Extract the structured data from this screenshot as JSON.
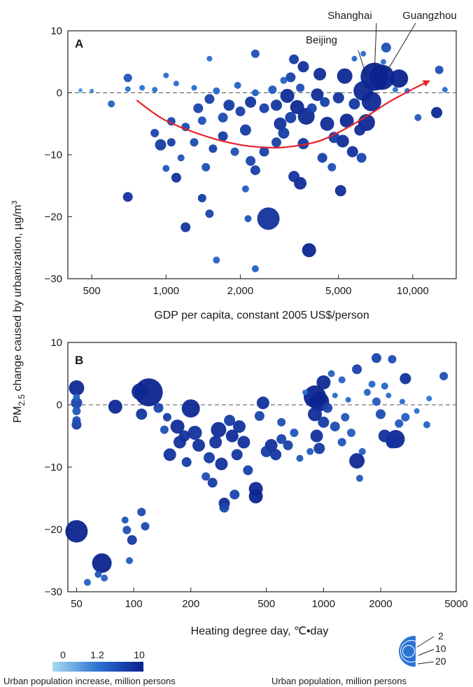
{
  "ylabel": "PM2.5 change caused by urbanization, µg/m3",
  "ylabel_parts": {
    "pre": "PM",
    "sub": "2.5",
    "mid": " change caused by urbanization, µg/m",
    "sup": "3"
  },
  "colors": {
    "light": "#a6dbef",
    "mid": "#2b73d3",
    "dark": "#0a1f8c",
    "curve": "#e8232a",
    "frame": "#222222"
  },
  "chart_data": [
    {
      "panel": "A",
      "type": "scatter",
      "xlabel": "GDP per capita, constant 2005 US$/person",
      "xscale": "log",
      "xlim": [
        400,
        15000
      ],
      "ylim": [
        -30,
        10
      ],
      "xticks": [
        500,
        1000,
        2000,
        5000,
        10000
      ],
      "xtick_labels": [
        "500",
        "1,000",
        "2,000",
        "5,000",
        "10,000"
      ],
      "yticks": [
        -30,
        -20,
        -10,
        0,
        10
      ],
      "ytick_labels": [
        "−30",
        "−20",
        "−10",
        "0",
        "10"
      ],
      "reference_line": 0,
      "annotations": [
        {
          "text": "Beijing",
          "x": 6500,
          "y": 1.5
        },
        {
          "text": "Shanghai",
          "x": 7000,
          "y": 2.5
        },
        {
          "text": "Guangzhou",
          "x": 7900,
          "y": 2.5
        }
      ],
      "trend_curve": [
        [
          760,
          -1.2
        ],
        [
          1000,
          -4.5
        ],
        [
          1500,
          -7.2
        ],
        [
          2000,
          -8.4
        ],
        [
          2500,
          -8.8
        ],
        [
          3000,
          -8.8
        ],
        [
          4000,
          -8
        ],
        [
          5000,
          -6.4
        ],
        [
          6500,
          -3.8
        ],
        [
          8000,
          -1.5
        ],
        [
          10000,
          0.6
        ],
        [
          11500,
          1.8
        ]
      ],
      "points": [
        [
          2600,
          -20.3,
          16,
          8
        ],
        [
          3800,
          -25.4,
          10,
          9.5
        ],
        [
          12500,
          -3.2,
          8,
          9
        ],
        [
          5300,
          2.7,
          11,
          9
        ],
        [
          7000,
          2.6,
          20,
          9.5
        ],
        [
          7500,
          2.5,
          18,
          9.5
        ],
        [
          8800,
          2.3,
          13,
          9.5
        ],
        [
          6300,
          0.3,
          14,
          9
        ],
        [
          6800,
          -1.4,
          14,
          9
        ],
        [
          6500,
          -4.8,
          12,
          9
        ],
        [
          6100,
          -6.0,
          8,
          8.5
        ],
        [
          5400,
          -4.5,
          10,
          9
        ],
        [
          4500,
          -5.0,
          10,
          8.5
        ],
        [
          3700,
          -3.8,
          12,
          9
        ],
        [
          3400,
          -2.3,
          10,
          9
        ],
        [
          4100,
          -0.3,
          9,
          8.5
        ],
        [
          3100,
          -0.5,
          10,
          8.5
        ],
        [
          2800,
          -2.0,
          8,
          7.5
        ],
        [
          2500,
          -2.5,
          7,
          6.5
        ],
        [
          2200,
          -1.5,
          8,
          7.5
        ],
        [
          1800,
          -2.0,
          8,
          7
        ],
        [
          1500,
          -1.0,
          7,
          6.5
        ],
        [
          1350,
          -2.5,
          7,
          6
        ],
        [
          1200,
          -5.5,
          6,
          5.5
        ],
        [
          1050,
          -4.6,
          6,
          6
        ],
        [
          950,
          -8.4,
          8,
          7
        ],
        [
          900,
          -6.5,
          6,
          6
        ],
        [
          700,
          -16.8,
          7,
          8
        ],
        [
          1100,
          -13.7,
          7,
          8
        ],
        [
          1200,
          -21.7,
          7,
          7.5
        ],
        [
          1400,
          -17.0,
          6,
          7
        ],
        [
          1500,
          -19.5,
          6,
          6
        ],
        [
          1600,
          -27,
          5,
          3
        ],
        [
          2150,
          -20.3,
          5,
          4.5
        ],
        [
          2300,
          -28.4,
          5,
          3
        ],
        [
          2100,
          -15.5,
          5,
          3.5
        ],
        [
          2300,
          -12.5,
          7,
          6.5
        ],
        [
          3300,
          -13.5,
          8,
          8
        ],
        [
          3500,
          -14.6,
          9,
          8.5
        ],
        [
          5100,
          -15.8,
          8,
          8.5
        ],
        [
          4700,
          -12.0,
          6,
          5
        ],
        [
          4300,
          -10.5,
          7,
          6.5
        ],
        [
          5700,
          -9.5,
          8,
          8
        ],
        [
          6200,
          -10.5,
          7,
          6
        ],
        [
          5200,
          -7.8,
          9,
          8.5
        ],
        [
          4800,
          -7.2,
          8,
          7
        ],
        [
          3600,
          -8.2,
          8,
          7.5
        ],
        [
          3000,
          -6.5,
          8,
          7
        ],
        [
          2800,
          -8.0,
          7,
          6.5
        ],
        [
          2500,
          -9.5,
          7,
          6.5
        ],
        [
          2200,
          -11.0,
          7,
          6
        ],
        [
          1900,
          -9.5,
          6,
          5
        ],
        [
          1700,
          -7.0,
          7,
          7
        ],
        [
          1550,
          -9.0,
          6,
          6.5
        ],
        [
          1450,
          -12.0,
          6,
          5
        ],
        [
          1300,
          -8.0,
          6,
          5.5
        ],
        [
          1150,
          -10.5,
          5,
          4.5
        ],
        [
          1000,
          -12.2,
          5,
          4
        ],
        [
          1050,
          -8.0,
          6,
          6.5
        ],
        [
          2900,
          -5.0,
          9,
          8
        ],
        [
          3200,
          -4.0,
          8,
          7
        ],
        [
          3900,
          -2.5,
          7,
          6
        ],
        [
          4400,
          -1.5,
          7,
          6.5
        ],
        [
          5000,
          -0.8,
          8,
          8
        ],
        [
          5800,
          -1.8,
          8,
          7.5
        ],
        [
          3500,
          0.8,
          6,
          5
        ],
        [
          3000,
          2.0,
          5,
          3
        ],
        [
          2700,
          0.5,
          6,
          4
        ],
        [
          2300,
          0.0,
          5,
          3.5
        ],
        [
          1950,
          1.2,
          5,
          3
        ],
        [
          1600,
          0.3,
          5,
          2.5
        ],
        [
          1300,
          0.8,
          4,
          2
        ],
        [
          1100,
          1.5,
          4,
          2
        ],
        [
          900,
          0.5,
          4,
          1.5
        ],
        [
          800,
          0.8,
          4,
          1.2
        ],
        [
          700,
          0.6,
          4,
          1.5
        ],
        [
          600,
          -1.8,
          5,
          3
        ],
        [
          500,
          0.3,
          3,
          1
        ],
        [
          450,
          0.4,
          3,
          0.8
        ],
        [
          3200,
          2.5,
          7,
          6.5
        ],
        [
          3600,
          4.2,
          8,
          8
        ],
        [
          3300,
          5.4,
          7,
          7
        ],
        [
          2300,
          6.3,
          6,
          5
        ],
        [
          1500,
          5.5,
          4,
          2
        ],
        [
          1000,
          2.8,
          4,
          2
        ],
        [
          700,
          2.4,
          6,
          4.5
        ],
        [
          4200,
          3.0,
          9,
          8.5
        ],
        [
          5800,
          5.5,
          4,
          2.5
        ],
        [
          6300,
          6.3,
          4,
          2
        ],
        [
          7600,
          5.0,
          4,
          1.5
        ],
        [
          7800,
          7.3,
          7,
          5
        ],
        [
          10500,
          -4.0,
          5,
          4
        ],
        [
          12800,
          3.7,
          6,
          5
        ],
        [
          13500,
          0.5,
          4,
          1.5
        ],
        [
          9500,
          0.3,
          4,
          1.5
        ],
        [
          8500,
          0.5,
          4,
          1.2
        ],
        [
          2000,
          -3.0,
          7,
          6.5
        ],
        [
          2100,
          -6.0,
          8,
          7
        ],
        [
          1700,
          -4.0,
          7,
          5.5
        ],
        [
          1400,
          -4.5,
          6,
          5
        ]
      ]
    },
    {
      "panel": "B",
      "type": "scatter",
      "xlabel": "Heating degree day, ℃•day",
      "xscale": "log",
      "xlim": [
        45,
        5000
      ],
      "ylim": [
        -30,
        10
      ],
      "xticks": [
        50,
        100,
        200,
        500,
        1000,
        2000,
        5000
      ],
      "xtick_labels": [
        "50",
        "100",
        "200",
        "500",
        "1000",
        "2000",
        "5000"
      ],
      "yticks": [
        -30,
        -20,
        -10,
        0,
        10
      ],
      "ytick_labels": [
        "−30",
        "−20",
        "−10",
        "0",
        "10"
      ],
      "reference_line": 0,
      "points": [
        [
          50,
          -20.3,
          16,
          9.5
        ],
        [
          50,
          2.7,
          11,
          9
        ],
        [
          50,
          0.3,
          8,
          6
        ],
        [
          50,
          -1.0,
          6,
          4
        ],
        [
          50,
          -2.5,
          6,
          5
        ],
        [
          50,
          -3.2,
          7,
          6.5
        ],
        [
          50,
          1.2,
          5,
          3
        ],
        [
          68,
          -25.4,
          14,
          9.5
        ],
        [
          65,
          -27.2,
          5,
          4.5
        ],
        [
          70,
          -27.8,
          5,
          3
        ],
        [
          57,
          -28.5,
          5,
          3
        ],
        [
          90,
          -18.5,
          5,
          4.5
        ],
        [
          92,
          -20.1,
          6,
          5
        ],
        [
          98,
          -21.7,
          7,
          7
        ],
        [
          110,
          -17.2,
          6,
          5.5
        ],
        [
          115,
          -19.5,
          6,
          5.5
        ],
        [
          95,
          -25,
          5,
          3.5
        ],
        [
          120,
          2.0,
          20,
          9.5
        ],
        [
          108,
          2.1,
          12,
          9
        ],
        [
          80,
          -0.3,
          10,
          9
        ],
        [
          110,
          -1.5,
          8,
          7.5
        ],
        [
          135,
          -0.5,
          7,
          6
        ],
        [
          145,
          -4.0,
          6,
          5
        ],
        [
          150,
          -2.0,
          6,
          6.5
        ],
        [
          155,
          -8.0,
          9,
          8
        ],
        [
          170,
          -3.5,
          10,
          8.5
        ],
        [
          175,
          -6.0,
          9,
          8
        ],
        [
          185,
          -5.0,
          8,
          8
        ],
        [
          190,
          -9.2,
          7,
          7
        ],
        [
          200,
          -0.6,
          13,
          9
        ],
        [
          210,
          -4.5,
          10,
          8
        ],
        [
          220,
          -6.5,
          9,
          8
        ],
        [
          240,
          -11.5,
          6,
          5
        ],
        [
          250,
          -8.5,
          8,
          7
        ],
        [
          260,
          -12.5,
          7,
          7
        ],
        [
          270,
          -6.0,
          9,
          8
        ],
        [
          280,
          -4.0,
          11,
          8.5
        ],
        [
          290,
          -9.5,
          9,
          8
        ],
        [
          300,
          -15.8,
          8,
          8.5
        ],
        [
          300,
          -16.5,
          7,
          6
        ],
        [
          320,
          -2.5,
          8,
          7
        ],
        [
          330,
          -5.0,
          9,
          8.5
        ],
        [
          340,
          -14.4,
          7,
          6
        ],
        [
          350,
          -8.0,
          8,
          7.5
        ],
        [
          360,
          -3.5,
          9,
          8
        ],
        [
          380,
          -6.0,
          9,
          8
        ],
        [
          400,
          -10.5,
          7,
          6.5
        ],
        [
          440,
          -13.5,
          10,
          9
        ],
        [
          440,
          -14.7,
          10,
          9.5
        ],
        [
          460,
          -1.8,
          7,
          6
        ],
        [
          480,
          0.3,
          9,
          8
        ],
        [
          500,
          -7.5,
          8,
          7
        ],
        [
          530,
          -6.5,
          9,
          8
        ],
        [
          560,
          -8.0,
          8,
          7.5
        ],
        [
          600,
          -5.5,
          7,
          6
        ],
        [
          650,
          -6.5,
          7,
          6.5
        ],
        [
          750,
          -8.6,
          5,
          4
        ],
        [
          850,
          -7.5,
          5,
          3.5
        ],
        [
          900,
          1.3,
          16,
          9.5
        ],
        [
          950,
          0.5,
          14,
          9.5
        ],
        [
          1000,
          3.6,
          10,
          9
        ],
        [
          900,
          -1.5,
          10,
          8.5
        ],
        [
          920,
          -5.0,
          9,
          8
        ],
        [
          950,
          -7.0,
          8,
          7
        ],
        [
          1000,
          -2.8,
          8,
          7
        ],
        [
          1050,
          -0.5,
          7,
          6
        ],
        [
          1150,
          -3.5,
          7,
          5.5
        ],
        [
          1250,
          -6.0,
          6,
          4.5
        ],
        [
          1300,
          -2.0,
          6,
          4
        ],
        [
          1400,
          -4.5,
          6,
          3.5
        ],
        [
          1500,
          -9.0,
          11,
          9
        ],
        [
          1550,
          -11.8,
          5,
          4
        ],
        [
          1600,
          -7.5,
          5,
          3.5
        ],
        [
          1500,
          5.7,
          7,
          6.5
        ],
        [
          1250,
          4.0,
          5,
          3
        ],
        [
          1100,
          5.0,
          5,
          3
        ],
        [
          1700,
          2.0,
          5,
          3
        ],
        [
          1900,
          0.5,
          6,
          4
        ],
        [
          2000,
          -1.5,
          7,
          5.5
        ],
        [
          2100,
          -5.0,
          9,
          8
        ],
        [
          2300,
          -6.0,
          9,
          8
        ],
        [
          2400,
          -5.5,
          13,
          9
        ],
        [
          2500,
          -3.0,
          6,
          4
        ],
        [
          2700,
          4.2,
          8,
          8
        ],
        [
          2700,
          -2.0,
          6,
          3.5
        ],
        [
          2300,
          7.3,
          6,
          5
        ],
        [
          2100,
          3.0,
          5,
          2.5
        ],
        [
          1900,
          7.5,
          7,
          6
        ],
        [
          4300,
          4.6,
          6,
          5
        ],
        [
          3500,
          -3.2,
          5,
          3
        ],
        [
          1800,
          3.3,
          5,
          2.5
        ],
        [
          2200,
          1.5,
          4,
          2
        ],
        [
          2600,
          0.5,
          4,
          2
        ],
        [
          3100,
          -1.0,
          4,
          1.5
        ],
        [
          3600,
          1.0,
          4,
          1.2
        ],
        [
          1150,
          1.5,
          4,
          2
        ],
        [
          1350,
          0.8,
          4,
          2
        ],
        [
          800,
          2.0,
          4,
          1.5
        ],
        [
          600,
          -2.8,
          6,
          5
        ],
        [
          700,
          -4.5,
          6,
          4.5
        ]
      ]
    }
  ],
  "legend": {
    "colorbar": {
      "ticks": [
        "0",
        "1.2",
        "10"
      ],
      "title": "Urban population increase, million persons"
    },
    "size": {
      "labels": [
        "2",
        "10",
        "20"
      ],
      "title": "Urban population, million persons"
    }
  }
}
